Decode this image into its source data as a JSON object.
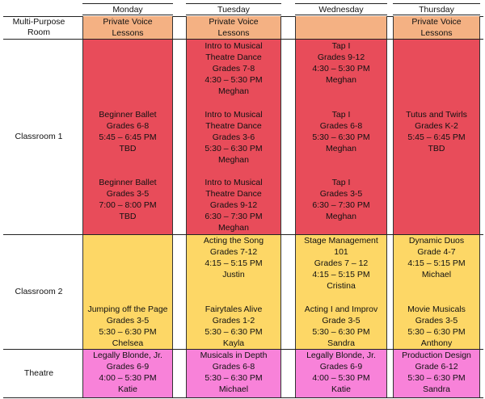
{
  "days": [
    "Monday",
    "Tuesday",
    "Wednesday",
    "Thursday"
  ],
  "rooms": [
    "Multi-Purpose\nRoom",
    "Classroom 1",
    "Classroom 2",
    "Theatre"
  ],
  "colors": {
    "mpr": "#f4b183",
    "classroom1": "#e84c5a",
    "classroom2": "#fdd766",
    "theatre": "#f882d9"
  },
  "schedule": {
    "mpr": [
      [
        "Private Voice",
        "Lessons"
      ],
      [
        "Private Voice",
        "Lessons"
      ],
      [],
      [
        "Private Voice",
        "Lessons"
      ]
    ],
    "c1_mon_a": [
      "Beginner Ballet",
      "Grades 6-8",
      "5:45 – 6:45 PM",
      "TBD"
    ],
    "c1_mon_b": [
      "Beginner Ballet",
      "Grades 3-5",
      "7:00 – 8:00 PM",
      "TBD"
    ],
    "c1_tue_a": [
      "Intro to Musical",
      "Theatre Dance",
      "Grades 7-8",
      "4:30 – 5:30 PM",
      "Meghan"
    ],
    "c1_tue_b": [
      "Intro to Musical",
      "Theatre Dance",
      "Grades 3-6",
      "5:30 – 6:30 PM",
      "Meghan"
    ],
    "c1_tue_c": [
      "Intro to Musical",
      "Theatre Dance",
      "Grades 9-12",
      "6:30 – 7:30 PM",
      "Meghan"
    ],
    "c1_wed_a": [
      "Tap I",
      "Grades 9-12",
      "4:30 – 5:30 PM",
      "Meghan"
    ],
    "c1_wed_b": [
      "Tap I",
      "Grades 6-8",
      "5:30 – 6:30 PM",
      "Meghan"
    ],
    "c1_wed_c": [
      "Tap I",
      "Grades 3-5",
      "6:30 – 7:30 PM",
      "Meghan"
    ],
    "c1_thu_a": [
      "Tutus and Twirls",
      "Grades K-2",
      "5:45 – 6:45 PM",
      "TBD"
    ],
    "c2_mon_b": [
      "Jumping off the Page",
      "Grades 3-5",
      "5:30 – 6:30 PM",
      "Chelsea"
    ],
    "c2_tue_a": [
      "Acting the Song",
      "Grades 7-12",
      "4:15 – 5:15 PM",
      "Justin"
    ],
    "c2_tue_b": [
      "Fairytales Alive",
      "Grades 1-2",
      "5:30 – 6:30 PM",
      "Kayla"
    ],
    "c2_wed_a": [
      "Stage Management",
      "101",
      "Grades 7 – 12",
      "4:15 – 5:15 PM",
      "Cristina"
    ],
    "c2_wed_b": [
      "Acting I and Improv",
      "Grade 3-5",
      "5:30 – 6:30 PM",
      "Sandra"
    ],
    "c2_thu_a": [
      "Dynamic Duos",
      "Grade 4-7",
      "4:15 – 5:15 PM",
      "Michael"
    ],
    "c2_thu_b": [
      "Movie Musicals",
      "Grades 3-5",
      "5:30 – 6:30 PM",
      "Anthony"
    ],
    "th_mon": [
      "Legally Blonde, Jr.",
      "Grades 6-9",
      "4:00 – 5:30 PM",
      "Katie"
    ],
    "th_tue": [
      "Musicals in Depth",
      "Grades 6-8",
      "5:30 – 6:30 PM",
      "Michael"
    ],
    "th_wed": [
      "Legally Blonde, Jr.",
      "Grades 6-9",
      "4:00 – 5:30 PM",
      "Katie"
    ],
    "th_thu": [
      "Production Design",
      "Grade 6-12",
      "5:30 – 6:30 PM",
      "Sandra"
    ]
  }
}
